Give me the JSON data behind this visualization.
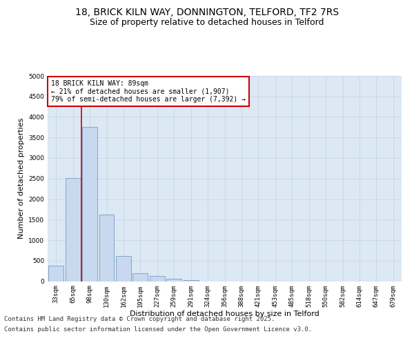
{
  "title_line1": "18, BRICK KILN WAY, DONNINGTON, TELFORD, TF2 7RS",
  "title_line2": "Size of property relative to detached houses in Telford",
  "xlabel": "Distribution of detached houses by size in Telford",
  "ylabel": "Number of detached properties",
  "categories": [
    "33sqm",
    "65sqm",
    "98sqm",
    "130sqm",
    "162sqm",
    "195sqm",
    "227sqm",
    "259sqm",
    "291sqm",
    "324sqm",
    "356sqm",
    "388sqm",
    "421sqm",
    "453sqm",
    "485sqm",
    "518sqm",
    "550sqm",
    "582sqm",
    "614sqm",
    "647sqm",
    "679sqm"
  ],
  "values": [
    370,
    2520,
    3750,
    1620,
    620,
    200,
    120,
    60,
    30,
    0,
    0,
    0,
    0,
    0,
    0,
    0,
    0,
    0,
    0,
    0,
    0
  ],
  "bar_color": "#c8d8ee",
  "bar_edge_color": "#6090c0",
  "grid_color": "#c8d8e8",
  "background_color": "#dce8f4",
  "vline_color": "#cc0000",
  "annotation_text": "18 BRICK KILN WAY: 89sqm\n← 21% of detached houses are smaller (1,907)\n79% of semi-detached houses are larger (7,392) →",
  "annotation_box_color": "#cc0000",
  "ylim": [
    0,
    5000
  ],
  "yticks": [
    0,
    500,
    1000,
    1500,
    2000,
    2500,
    3000,
    3500,
    4000,
    4500,
    5000
  ],
  "footer_line1": "Contains HM Land Registry data © Crown copyright and database right 2025.",
  "footer_line2": "Contains public sector information licensed under the Open Government Licence v3.0.",
  "title_fontsize": 10,
  "subtitle_fontsize": 9,
  "ylabel_fontsize": 8,
  "xlabel_fontsize": 8,
  "tick_fontsize": 6.5,
  "annotation_fontsize": 7,
  "footer_fontsize": 6.5
}
